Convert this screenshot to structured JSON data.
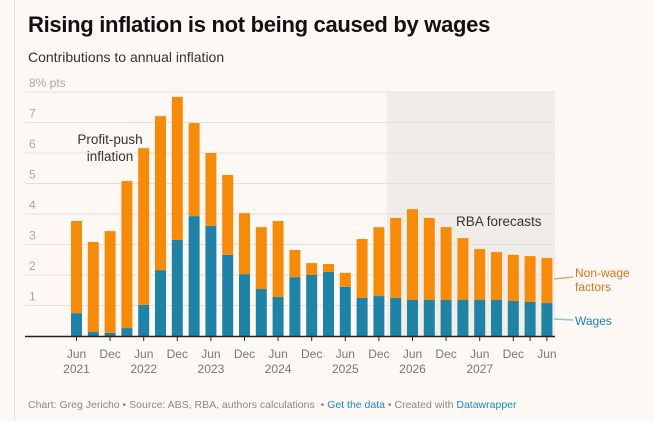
{
  "header": {
    "title": "Rising inflation is not being caused by wages",
    "subtitle": "Contributions to annual inflation"
  },
  "footer": {
    "chart_credit": "Chart: Greg Jericho",
    "separator": " • ",
    "source": "Source: ABS, RBA, authors calculations",
    "get_data_link": "Get the data",
    "created_with": "Created with",
    "datawrapper_link": "Datawrapper"
  },
  "colors": {
    "wages": "#1e83a6",
    "non_wage": "#f68b0a",
    "forecast_shade": "#f0ece7",
    "gridline": "#e4e1dd",
    "axis": "#222222"
  },
  "chart_data": {
    "type": "bar",
    "stacked": true,
    "title": "Rising inflation is not being caused by wages",
    "subtitle": "Contributions to annual inflation",
    "ylabel": "% pts",
    "ylim": [
      0,
      8
    ],
    "yticks": [
      {
        "value": 1,
        "label": "1"
      },
      {
        "value": 2,
        "label": "2"
      },
      {
        "value": 3,
        "label": "3"
      },
      {
        "value": 4,
        "label": "4"
      },
      {
        "value": 5,
        "label": "5"
      },
      {
        "value": 6,
        "label": "6"
      },
      {
        "value": 7,
        "label": "7"
      },
      {
        "value": 8,
        "label": "8% pts"
      }
    ],
    "grid": true,
    "categories": [
      "Jun 2021",
      "Sep 2021",
      "Dec 2021",
      "Mar 2022",
      "Jun 2022",
      "Sep 2022",
      "Dec 2022",
      "Mar 2023",
      "Jun 2023",
      "Sep 2023",
      "Dec 2023",
      "Mar 2024",
      "Jun 2024",
      "Sep 2024",
      "Dec 2024",
      "Mar 2025",
      "Jun 2025",
      "Sep 2025",
      "Dec 2025",
      "Mar 2026",
      "Jun 2026",
      "Sep 2026",
      "Dec 2026",
      "Mar 2027",
      "Jun 2027",
      "Sep 2027",
      "Dec 2027",
      "Mar 2028",
      "Jun 2028"
    ],
    "xticks": [
      {
        "index": 0,
        "line1": "Jun",
        "line2": "2021"
      },
      {
        "index": 2,
        "line1": "Dec",
        "line2": ""
      },
      {
        "index": 4,
        "line1": "Jun",
        "line2": "2022"
      },
      {
        "index": 6,
        "line1": "Dec",
        "line2": ""
      },
      {
        "index": 8,
        "line1": "Jun",
        "line2": "2023"
      },
      {
        "index": 10,
        "line1": "Dec",
        "line2": ""
      },
      {
        "index": 12,
        "line1": "Jun",
        "line2": "2024"
      },
      {
        "index": 14,
        "line1": "Dec",
        "line2": ""
      },
      {
        "index": 16,
        "line1": "Jun",
        "line2": "2025"
      },
      {
        "index": 18,
        "line1": "Dec",
        "line2": ""
      },
      {
        "index": 20,
        "line1": "Jun",
        "line2": "2026"
      },
      {
        "index": 22,
        "line1": "Dec",
        "line2": ""
      },
      {
        "index": 24,
        "line1": "Jun",
        "line2": "2027"
      },
      {
        "index": 26,
        "line1": "Dec",
        "line2": ""
      },
      {
        "index": 27,
        "line1": "",
        "line2": ""
      },
      {
        "index": 28,
        "line1": "Jun",
        "line2": ""
      }
    ],
    "series": [
      {
        "name": "Wages",
        "color": "#1e83a6",
        "values": [
          0.75,
          0.13,
          0.1,
          0.26,
          1.02,
          2.16,
          3.15,
          3.93,
          3.61,
          2.66,
          2.03,
          1.54,
          1.28,
          1.93,
          2.0,
          2.1,
          1.61,
          1.25,
          1.31,
          1.25,
          1.18,
          1.18,
          1.18,
          1.18,
          1.18,
          1.18,
          1.15,
          1.12,
          1.08
        ]
      },
      {
        "name": "Non-wage factors",
        "color": "#f68b0a",
        "values": [
          3.02,
          2.95,
          3.34,
          4.82,
          5.14,
          5.05,
          4.69,
          3.05,
          2.39,
          2.62,
          2.0,
          2.03,
          2.49,
          0.89,
          0.39,
          0.26,
          0.46,
          1.93,
          2.26,
          2.62,
          2.98,
          2.69,
          2.39,
          2.03,
          1.67,
          1.57,
          1.51,
          1.5,
          1.48
        ]
      }
    ],
    "forecast_region": {
      "from_index": 19,
      "to_index": 28,
      "label": "RBA forecasts"
    },
    "annotations": [
      {
        "text_lines": [
          "Profit-push",
          "inflation"
        ]
      },
      {
        "text_lines": [
          "RBA forecasts"
        ]
      }
    ],
    "legend": {
      "placement": "right",
      "entries": [
        {
          "series": "Non-wage factors",
          "lines": [
            "Non-wage",
            "factors"
          ]
        },
        {
          "series": "Wages",
          "lines": [
            "Wages"
          ]
        }
      ]
    }
  }
}
